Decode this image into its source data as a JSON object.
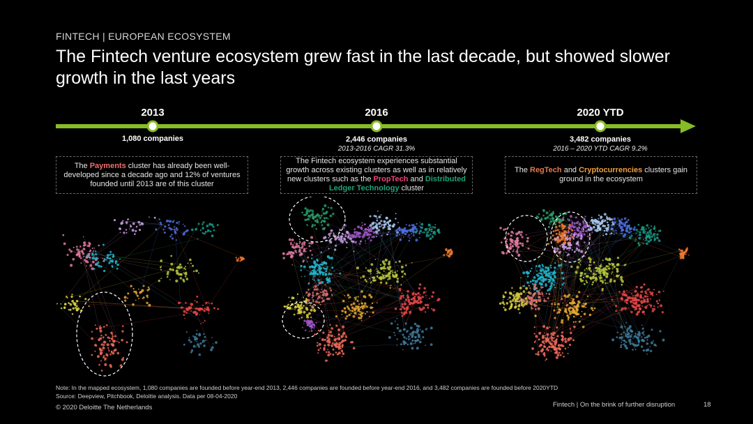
{
  "header": {
    "kicker": "FINTECH | EUROPEAN ECOSYSTEM",
    "title": "The Fintech venture ecosystem grew fast in the last decade, but showed slower growth in the last years"
  },
  "timeline": {
    "milestones": [
      {
        "year": "2013",
        "companies": "1,080 companies",
        "cagr": ""
      },
      {
        "year": "2016",
        "companies": "2,446 companies",
        "cagr": "2013-2016 CAGR 31.3%"
      },
      {
        "year": "2020 YTD",
        "companies": "3,482 companies",
        "cagr": "2016 – 2020 YTD CAGR 9.2%"
      }
    ]
  },
  "boxes": {
    "b2013": {
      "pre": "The ",
      "hl1": "Payments",
      "post": " cluster has already been well-developed since a decade ago and 12% of ventures founded until 2013 are of this cluster"
    },
    "b2016": {
      "pre": "The Fintech ecosystem experiences substantial growth across existing clusters as well as in relatively new clusters such as the ",
      "hl1": "PropTech",
      "mid": " and ",
      "hl2": "Distributed Ledger Technology",
      "post": " cluster"
    },
    "b2020": {
      "pre": "The ",
      "hl1": "RegTech",
      "mid": " and ",
      "hl2": "Cryptocurrencies",
      "post": " clusters gain ground in the ecosystem"
    }
  },
  "footer": {
    "note": "Note: In the mapped ecosystem, 1,080 companies are founded before year-end 2013, 2,446 companies are founded before year-end 2016, and 3,482 companies are founded before 2020YTD",
    "source": "Source: Deepview, Pitchbook, Deloitte analysis. Data per 08-04-2020",
    "copyright": "© 2020 Deloitte The Netherlands",
    "deck": "Fintech | On the brink of further disruption",
    "page": "18"
  },
  "colors": {
    "accent": "#86bc25",
    "payments": "#f26d6d",
    "proptech": "#e8457a",
    "dlt": "#1ea37a",
    "regtech": "#e07a4e",
    "crypto": "#f0a040"
  }
}
